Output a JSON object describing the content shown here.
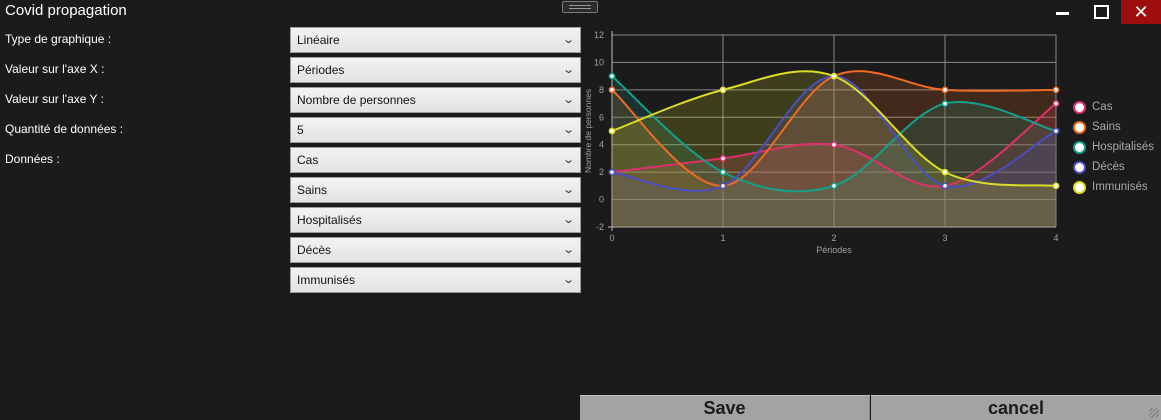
{
  "window": {
    "title": "Covid propagation"
  },
  "form": {
    "labels": {
      "chart_type": "Type de graphique :",
      "x_axis": "Valeur sur l'axe X :",
      "y_axis": "Valeur sur l'axe Y :",
      "data_count": "Quantité de données :",
      "data": "Données :"
    },
    "chart_type_value": "Linéaire",
    "x_axis_value": "Périodes",
    "y_axis_value": "Nombre de personnes",
    "data_count_value": "5",
    "data_values": [
      "Cas",
      "Sains",
      "Hospitalisés",
      "Décès",
      "Immunisés"
    ]
  },
  "buttons": {
    "save": "Save",
    "cancel": "cancel"
  },
  "colors": {
    "Cas": "#e0306a",
    "Sains": "#f06a24",
    "Hospitalisés": "#14a08c",
    "Décès": "#4a4fc0",
    "Immunisés": "#dcdc28"
  },
  "chart_data": {
    "type": "area",
    "xlabel": "Périodes",
    "ylabel": "Nombre de personnes",
    "x": [
      0,
      1,
      2,
      3,
      4
    ],
    "ylim": [
      -2,
      12
    ],
    "yticks": [
      -2,
      0,
      2,
      4,
      6,
      8,
      10,
      12
    ],
    "grid": true,
    "legend_position": "right",
    "series": [
      {
        "name": "Cas",
        "values": [
          2,
          3,
          4,
          1,
          7
        ]
      },
      {
        "name": "Sains",
        "values": [
          8,
          1,
          9,
          8,
          8
        ]
      },
      {
        "name": "Hospitalisés",
        "values": [
          9,
          2,
          1,
          7,
          5
        ]
      },
      {
        "name": "Décès",
        "values": [
          2,
          1,
          9,
          1,
          5
        ]
      },
      {
        "name": "Immunisés",
        "values": [
          5,
          8,
          9,
          2,
          1
        ]
      }
    ]
  }
}
